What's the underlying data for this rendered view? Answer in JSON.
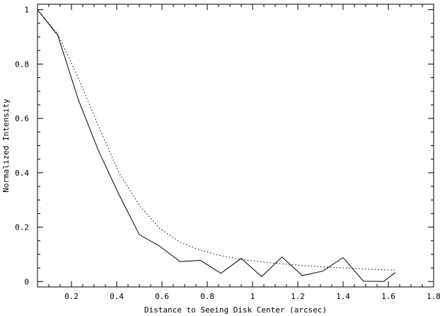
{
  "chart_data": {
    "type": "line",
    "title": "",
    "xlabel": "Distance to Seeing Disk Center (arcsec)",
    "ylabel": "Normalized Intensity",
    "xlim": [
      0.05,
      1.8
    ],
    "ylim": [
      -0.02,
      1.02
    ],
    "xticks": [
      0.2,
      0.4,
      0.6,
      0.8,
      1.0,
      1.2,
      1.4,
      1.6,
      1.8
    ],
    "xtick_labels": [
      "0.2",
      "0.4",
      "0.6",
      "0.8",
      "1",
      "1.2",
      "1.4",
      "1.6",
      "1.8"
    ],
    "yticks": [
      0,
      0.2,
      0.4,
      0.6,
      0.8,
      1.0
    ],
    "ytick_labels": [
      "0",
      "0.2",
      "0.4",
      "0.6",
      "0.8",
      "1"
    ],
    "grid": false,
    "series": [
      {
        "style": "solid",
        "x": [
          0.05,
          0.14,
          0.23,
          0.32,
          0.41,
          0.5,
          0.59,
          0.68,
          0.77,
          0.86,
          0.95,
          1.04,
          1.13,
          1.22,
          1.31,
          1.4,
          1.49,
          1.58,
          1.63
        ],
        "y": [
          1.0,
          0.905,
          0.67,
          0.48,
          0.32,
          0.172,
          0.13,
          0.073,
          0.078,
          0.03,
          0.085,
          0.018,
          0.09,
          0.022,
          0.038,
          0.088,
          0.001,
          0.0,
          0.033
        ]
      },
      {
        "style": "dotted",
        "x": [
          0.05,
          0.14,
          0.23,
          0.32,
          0.41,
          0.5,
          0.59,
          0.68,
          0.77,
          0.86,
          0.95,
          1.04,
          1.13,
          1.22,
          1.31,
          1.4,
          1.49,
          1.58,
          1.63
        ],
        "y": [
          1.0,
          0.91,
          0.75,
          0.57,
          0.4,
          0.28,
          0.195,
          0.145,
          0.115,
          0.095,
          0.082,
          0.072,
          0.065,
          0.059,
          0.054,
          0.05,
          0.046,
          0.043,
          0.042
        ]
      }
    ]
  }
}
